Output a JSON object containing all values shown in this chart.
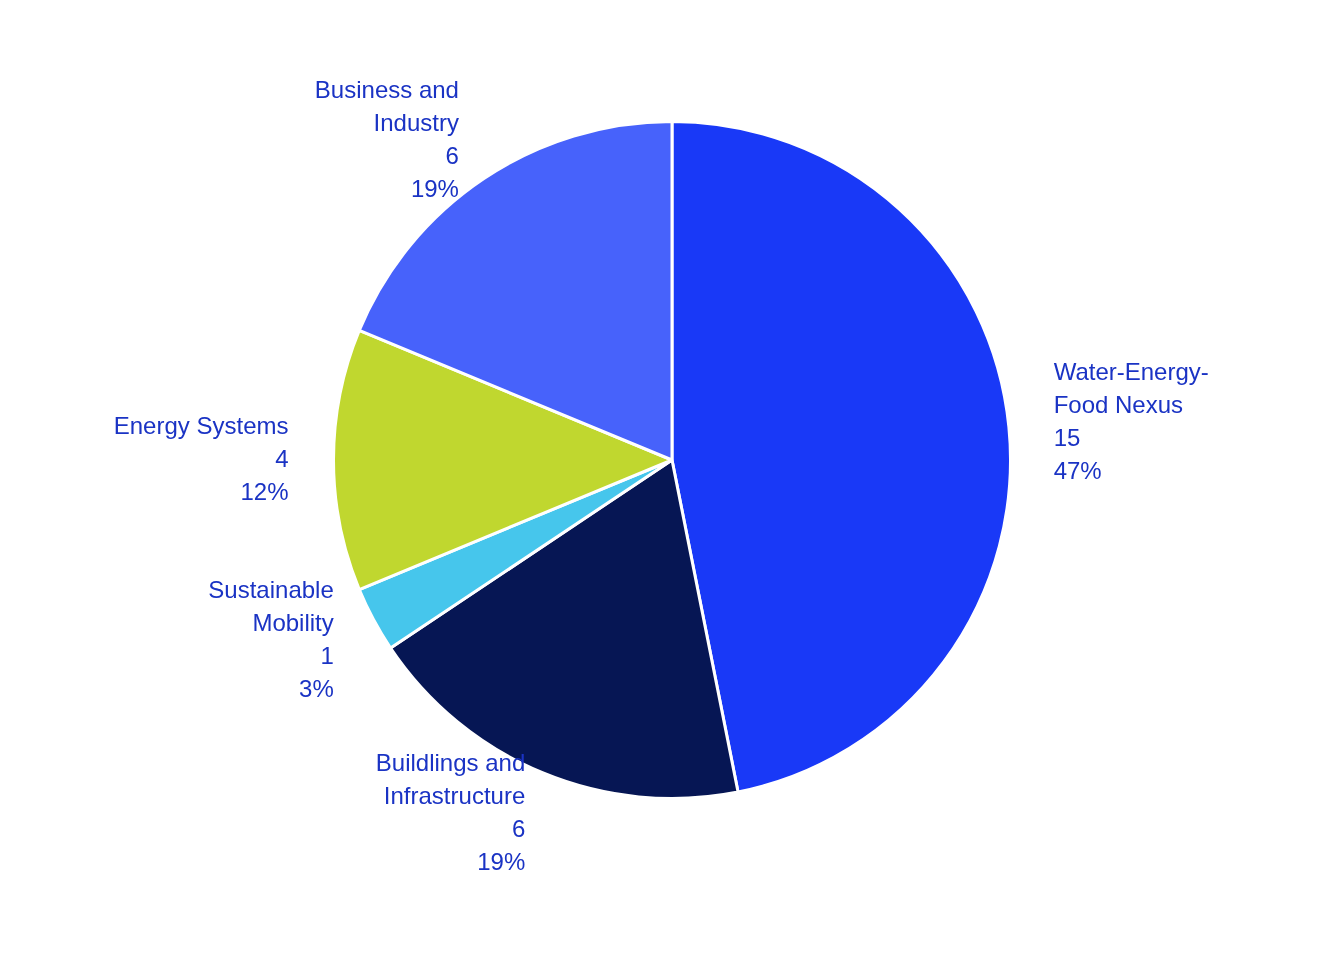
{
  "chart_data": {
    "type": "pie",
    "categories": [
      "Water-Energy-Food Nexus",
      "Buildlings and Infrastructure",
      "Sustainable Mobility",
      "Energy Systems",
      "Business and Industry"
    ],
    "values": [
      15,
      6,
      1,
      4,
      6
    ],
    "colors": [
      "#1939f7",
      "#061654",
      "#46c6ec",
      "#c0d72f",
      "#4762fb"
    ],
    "value_labels": [
      "15\n47%",
      "6\n19%",
      "1\n3%",
      "4\n12%",
      "6\n19%"
    ]
  }
}
